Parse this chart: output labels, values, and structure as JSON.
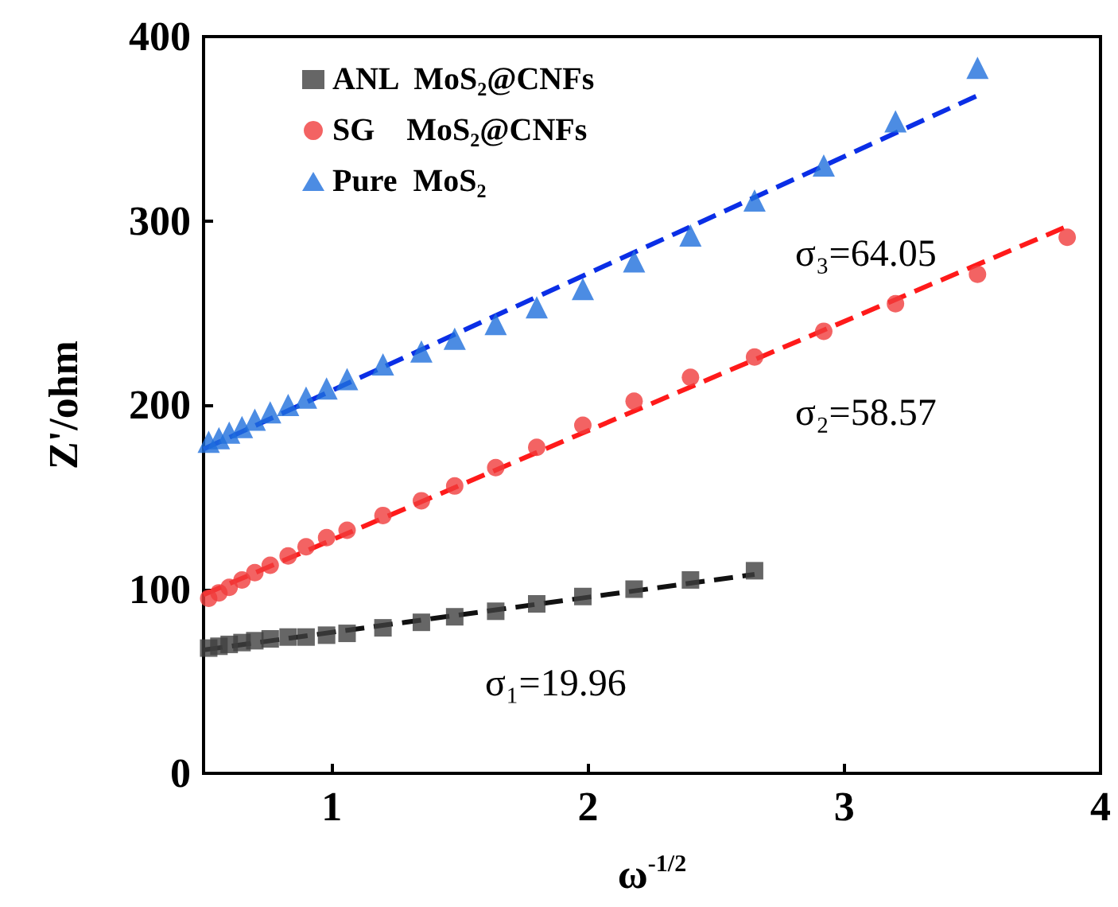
{
  "chart_data": {
    "type": "scatter",
    "xlabel": "ω$^{-1/2}$",
    "ylabel": "Z'/ohm",
    "xlim": [
      0.5,
      4
    ],
    "xticks": [
      1,
      2,
      3,
      4
    ],
    "ylim": [
      0,
      400
    ],
    "yticks": [
      0,
      100,
      200,
      300,
      400
    ],
    "grid": false,
    "legend": "top left",
    "annotations": [
      "σ₃=64.05",
      "σ₂=58.57",
      "σ₁=19.96"
    ],
    "series": [
      {
        "name": "ANL  MoS₂@CNFs",
        "color": "#404040",
        "marker": "square",
        "x": [
          0.52,
          0.56,
          0.6,
          0.65,
          0.7,
          0.76,
          0.83,
          0.9,
          0.98,
          1.06,
          1.2,
          1.35,
          1.48,
          1.64,
          1.8,
          1.98,
          2.18,
          2.4,
          2.65
        ],
        "values": [
          68,
          69,
          70,
          71,
          72,
          73,
          74,
          74,
          75,
          76,
          79,
          82,
          85,
          88,
          92,
          96,
          100,
          105,
          110
        ]
      },
      {
        "name": "SG    MoS₂@CNFs",
        "color": "#f03c3c",
        "marker": "circle",
        "x": [
          0.52,
          0.56,
          0.6,
          0.65,
          0.7,
          0.76,
          0.83,
          0.9,
          0.98,
          1.06,
          1.2,
          1.35,
          1.48,
          1.64,
          1.8,
          1.98,
          2.18,
          2.4,
          2.65,
          2.92,
          3.2,
          3.52,
          3.87
        ],
        "values": [
          95,
          98,
          101,
          105,
          109,
          113,
          118,
          123,
          128,
          132,
          140,
          148,
          156,
          166,
          177,
          189,
          202,
          215,
          226,
          240,
          255,
          271,
          291
        ]
      },
      {
        "name": "Pure  MoS₂",
        "color": "#1f6fdc",
        "marker": "triangle",
        "x": [
          0.52,
          0.56,
          0.6,
          0.65,
          0.7,
          0.76,
          0.83,
          0.9,
          0.98,
          1.06,
          1.2,
          1.35,
          1.48,
          1.64,
          1.8,
          1.98,
          2.18,
          2.4,
          2.65,
          2.92,
          3.2,
          3.52
        ],
        "values": [
          180,
          182,
          185,
          188,
          192,
          196,
          200,
          204,
          209,
          214,
          222,
          229,
          236,
          244,
          253,
          263,
          278,
          292,
          311,
          330,
          354,
          383
        ]
      },
      {
        "type": "line",
        "color": "#111111",
        "marker": "none",
        "line_style": "dashed",
        "x": [
          0.5,
          2.65
        ],
        "values": [
          67,
          108
        ]
      },
      {
        "type": "line",
        "color": "#ff1a1a",
        "marker": "none",
        "line_style": "dashed",
        "x": [
          0.5,
          3.87
        ],
        "values": [
          97,
          297
        ]
      },
      {
        "type": "line",
        "color": "#0a2ee6",
        "marker": "none",
        "line_style": "dashed",
        "x": [
          0.5,
          3.52
        ],
        "values": [
          176,
          368
        ]
      }
    ]
  }
}
